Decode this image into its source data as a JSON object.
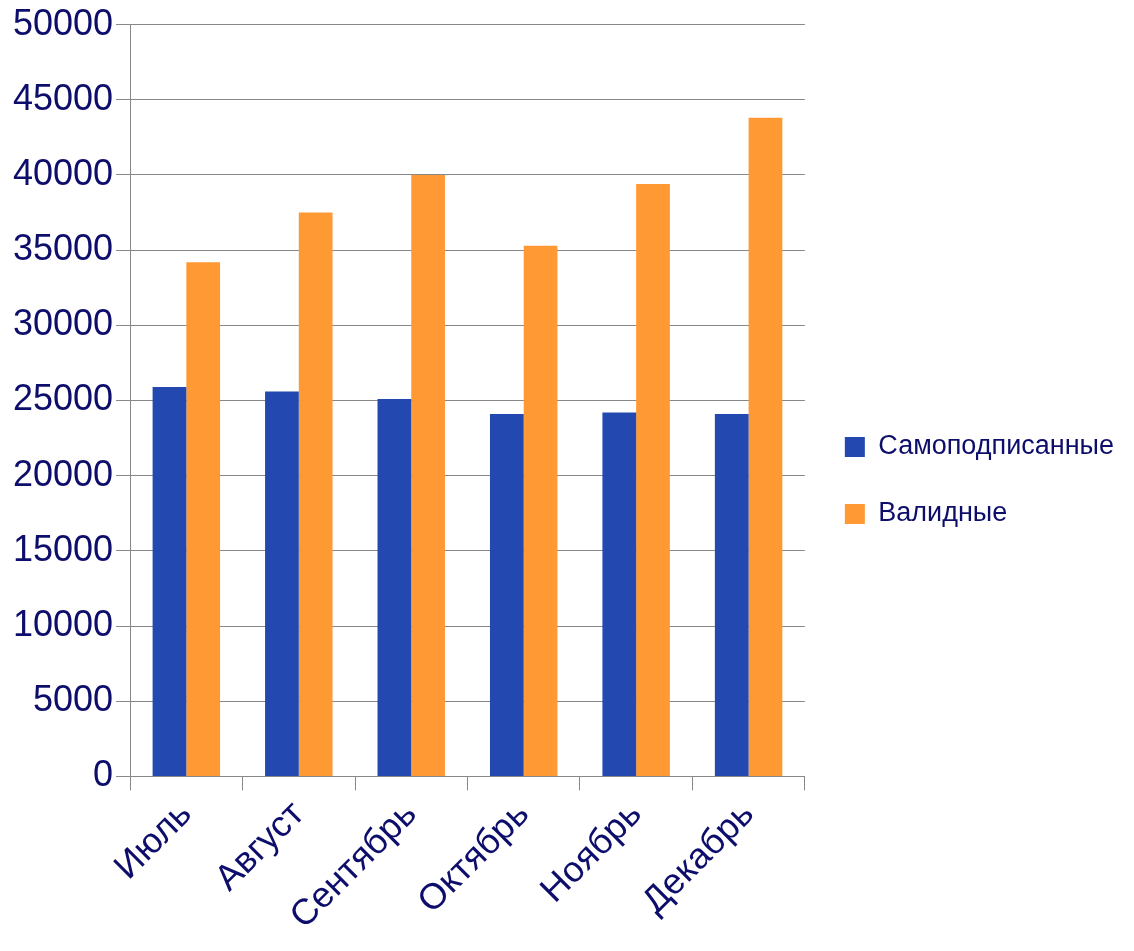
{
  "chart_data": {
    "type": "bar",
    "categories": [
      "Июль",
      "Август",
      "Сентябрь",
      "Октябрь",
      "Ноябрь",
      "Декабрь"
    ],
    "series": [
      {
        "name": "Самоподписанные",
        "color": "#2349b0",
        "values": [
          25900,
          25600,
          25100,
          24100,
          24200,
          24100
        ]
      },
      {
        "name": "Валидные",
        "color": "#ff9933",
        "values": [
          34200,
          37500,
          40000,
          35300,
          39400,
          43800
        ]
      }
    ],
    "ylim": [
      0,
      50000
    ],
    "yticks": [
      0,
      5000,
      10000,
      15000,
      20000,
      25000,
      30000,
      35000,
      40000,
      45000,
      50000
    ],
    "grid": "y",
    "legend": "right"
  }
}
